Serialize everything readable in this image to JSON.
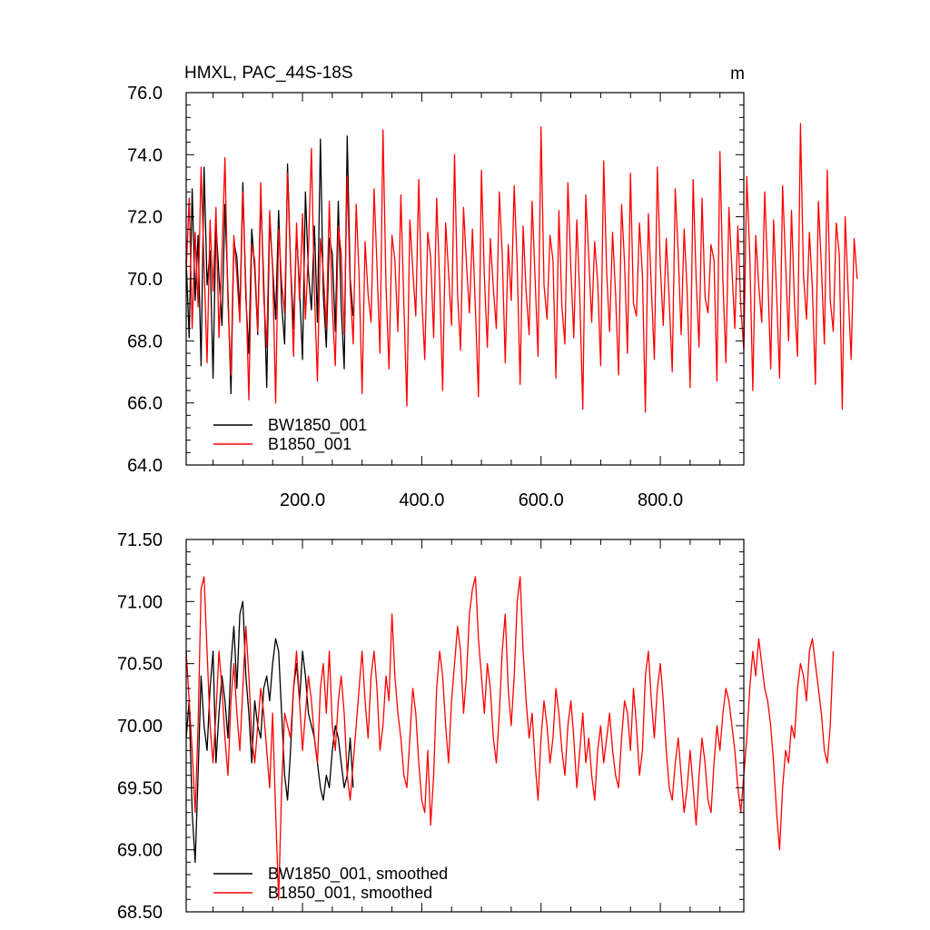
{
  "chart_data": [
    {
      "type": "line",
      "title": "HMXL, PAC_44S-18S",
      "unit": "m",
      "xlim": [
        5,
        940
      ],
      "ylim": [
        64.0,
        76.0
      ],
      "x_ticks": [
        200,
        400,
        600,
        800
      ],
      "x_tick_labels": [
        "200.0",
        "400.0",
        "600.0",
        "800.0"
      ],
      "y_ticks": [
        64.0,
        66.0,
        68.0,
        70.0,
        72.0,
        74.0,
        76.0
      ],
      "y_tick_labels": [
        "64.0",
        "66.0",
        "68.0",
        "70.0",
        "72.0",
        "74.0",
        "76.0"
      ],
      "grid": false,
      "legend_position": "bottom-left",
      "series": [
        {
          "name": "BW1850_001",
          "color": "#000000",
          "x_start": 5,
          "x_step": 5,
          "values": [
            70.6,
            68.1,
            72.9,
            69.3,
            71.4,
            67.2,
            73.6,
            69.8,
            70.9,
            66.8,
            71.8,
            70.1,
            68.5,
            72.4,
            69.6,
            66.3,
            71.2,
            70.7,
            68.9,
            73.1,
            69.4,
            67.6,
            71.6,
            70.3,
            68.2,
            72.7,
            69.9,
            66.5,
            71.9,
            70.4,
            68.7,
            72.2,
            69.2,
            67.9,
            73.7,
            70.5,
            68.4,
            71.5,
            69.7,
            67.4,
            72.8,
            70.2,
            69.0,
            71.7,
            68.6,
            74.5,
            69.5,
            67.8,
            71.3,
            70.8,
            68.3,
            72.5,
            69.1,
            67.1,
            74.6,
            70.0,
            68.8
          ]
        },
        {
          "name": "B1850_001",
          "color": "#ff0000",
          "x_start": 5,
          "x_step": 5,
          "values": [
            70.2,
            72.6,
            68.4,
            71.5,
            69.1,
            73.6,
            70.4,
            67.3,
            71.9,
            69.6,
            72.3,
            68.1,
            70.8,
            73.9,
            69.2,
            66.9,
            71.4,
            70.1,
            68.6,
            72.8,
            69.8,
            66.1,
            71.1,
            70.6,
            68.3,
            73.1,
            69.4,
            67.8,
            72.2,
            70.3,
            66.0,
            71.6,
            69.9,
            68.9,
            73.4,
            70.5,
            67.5,
            71.8,
            69.3,
            72.1,
            68.7,
            70.9,
            74.2,
            69.6,
            66.7,
            71.3,
            70.2,
            68.4,
            72.5,
            69.1,
            67.2,
            71.7,
            70.8,
            68.2,
            73.3,
            69.7,
            67.9,
            72.4,
            70.1,
            66.3,
            71.2,
            69.5,
            68.6,
            72.9,
            70.4,
            67.6,
            74.8,
            69.8,
            67.1,
            71.4,
            70.6,
            68.3,
            72.7,
            69.2,
            65.9,
            71.9,
            70.3,
            68.8,
            73.2,
            69.4,
            67.4,
            71.5,
            70.7,
            68.1,
            72.6,
            69.9,
            66.4,
            71.8,
            70.2,
            68.5,
            74.0,
            69.5,
            67.7,
            72.3,
            70.5,
            68.9,
            71.6,
            69.0,
            66.2,
            73.5,
            70.1,
            67.8,
            71.3,
            69.7,
            68.4,
            72.8,
            70.8,
            67.3,
            71.1,
            69.3,
            73.0,
            70.4,
            66.6,
            71.7,
            69.6,
            68.2,
            72.5,
            70.0,
            67.5,
            74.9,
            69.8,
            68.7,
            71.4,
            70.6,
            66.8,
            72.2,
            69.1,
            67.9,
            73.1,
            70.3,
            68.1,
            71.9,
            69.4,
            65.8,
            72.7,
            70.7,
            68.6,
            71.2,
            69.9,
            67.2,
            73.8,
            70.2,
            68.3,
            71.5,
            69.5,
            66.9,
            72.4,
            70.5,
            67.6,
            73.4,
            69.2,
            68.8,
            71.8,
            70.1,
            65.7,
            72.1,
            69.7,
            67.4,
            73.6,
            70.4,
            68.5,
            71.3,
            69.3,
            67.0,
            72.9,
            70.8,
            68.2,
            71.6,
            69.6,
            66.5,
            73.2,
            70.0,
            67.8,
            72.6,
            69.4,
            68.9,
            71.1,
            70.6,
            66.7,
            74.1,
            69.9,
            67.3,
            72.3,
            70.3,
            68.4,
            71.7,
            69.1,
            67.7,
            73.3,
            70.7,
            66.4,
            71.4,
            69.8,
            68.6,
            72.8,
            70.2,
            67.1,
            71.9,
            69.5,
            66.8,
            73.0,
            70.5,
            68.0,
            72.2,
            69.2,
            67.5,
            75.0,
            70.1,
            68.7,
            71.5,
            69.7,
            66.6,
            72.5,
            70.4,
            67.9,
            73.5,
            69.3,
            68.3,
            71.8,
            70.8,
            65.8,
            72.0,
            69.6,
            67.4,
            71.3,
            70.0
          ]
        }
      ]
    },
    {
      "type": "line",
      "xlim": [
        5,
        940
      ],
      "ylim": [
        68.5,
        71.5
      ],
      "x_ticks": [
        200,
        400,
        600,
        800
      ],
      "y_ticks": [
        68.5,
        69.0,
        69.5,
        70.0,
        70.5,
        71.0,
        71.5
      ],
      "y_tick_labels": [
        "68.50",
        "69.00",
        "69.50",
        "70.00",
        "70.50",
        "71.00",
        "71.50"
      ],
      "grid": false,
      "legend_position": "bottom-left",
      "series": [
        {
          "name": "BW1850_001, smoothed",
          "color": "#000000",
          "x_start": 5,
          "x_step": 5,
          "values": [
            69.9,
            70.2,
            69.3,
            68.9,
            69.6,
            70.4,
            70.0,
            69.8,
            70.3,
            70.6,
            69.7,
            70.1,
            70.4,
            70.2,
            69.9,
            70.5,
            70.8,
            70.3,
            70.9,
            71.0,
            70.4,
            70.1,
            69.7,
            70.2,
            70.0,
            69.9,
            70.3,
            70.4,
            70.2,
            70.5,
            70.7,
            70.6,
            70.1,
            69.6,
            69.4,
            69.8,
            70.3,
            70.5,
            70.2,
            70.6,
            70.4,
            70.1,
            70.0,
            69.9,
            69.7,
            69.5,
            69.4,
            69.6,
            69.5,
            69.8,
            70.0,
            69.9,
            69.7,
            69.5,
            69.6,
            69.9,
            69.5
          ]
        },
        {
          "name": "B1850_001, smoothed",
          "color": "#ff0000",
          "x_start": 5,
          "x_step": 5,
          "values": [
            70.6,
            70.2,
            69.8,
            69.3,
            70.0,
            71.1,
            71.2,
            70.6,
            70.0,
            69.7,
            70.1,
            70.6,
            70.3,
            69.9,
            69.6,
            70.2,
            70.5,
            70.1,
            69.8,
            70.3,
            70.8,
            70.4,
            69.9,
            69.7,
            70.0,
            70.3,
            70.1,
            69.8,
            69.5,
            70.1,
            69.3,
            68.6,
            69.5,
            70.1,
            70.0,
            69.9,
            70.3,
            70.6,
            70.2,
            69.8,
            70.1,
            70.4,
            70.2,
            69.9,
            69.7,
            70.3,
            70.5,
            70.1,
            70.6,
            70.0,
            69.8,
            70.2,
            70.4,
            70.1,
            69.6,
            69.4,
            69.7,
            70.0,
            70.3,
            70.6,
            70.2,
            69.9,
            70.4,
            70.6,
            70.3,
            69.8,
            70.0,
            70.4,
            70.2,
            70.9,
            70.4,
            70.1,
            69.9,
            69.6,
            69.5,
            69.9,
            70.3,
            70.1,
            69.7,
            69.4,
            69.3,
            69.8,
            69.2,
            69.6,
            70.3,
            70.6,
            70.4,
            70.0,
            69.7,
            70.2,
            70.5,
            70.8,
            70.6,
            70.1,
            70.4,
            70.9,
            71.1,
            71.2,
            70.7,
            70.4,
            70.1,
            70.5,
            70.3,
            69.9,
            69.7,
            70.1,
            70.6,
            70.9,
            70.3,
            70.0,
            70.4,
            71.0,
            71.2,
            70.6,
            70.2,
            69.9,
            70.1,
            69.7,
            69.4,
            69.9,
            70.2,
            70.0,
            69.7,
            69.9,
            70.3,
            70.1,
            69.8,
            69.6,
            70.0,
            70.2,
            69.9,
            69.5,
            69.8,
            70.1,
            69.7,
            69.9,
            69.6,
            69.4,
            69.8,
            70.0,
            69.7,
            69.9,
            70.1,
            69.8,
            69.6,
            69.5,
            69.9,
            70.2,
            70.1,
            69.8,
            70.3,
            70.0,
            69.6,
            69.8,
            70.4,
            70.6,
            70.2,
            69.9,
            70.3,
            70.5,
            70.2,
            69.8,
            69.5,
            69.4,
            69.7,
            69.9,
            69.6,
            69.3,
            69.5,
            69.8,
            69.5,
            69.2,
            69.6,
            69.9,
            69.7,
            69.4,
            69.3,
            69.7,
            70.0,
            69.8,
            70.1,
            70.3,
            70.2,
            70.0,
            69.8,
            69.5,
            69.3,
            69.6,
            69.9,
            70.3,
            70.6,
            70.4,
            70.7,
            70.5,
            70.3,
            70.2,
            70.0,
            69.7,
            69.3,
            69.0,
            69.5,
            69.8,
            69.7,
            70.0,
            69.9,
            70.3,
            70.5,
            70.4,
            70.2,
            70.6,
            70.7,
            70.5,
            70.3,
            70.1,
            69.8,
            69.7,
            70.0,
            70.6
          ]
        }
      ]
    }
  ]
}
